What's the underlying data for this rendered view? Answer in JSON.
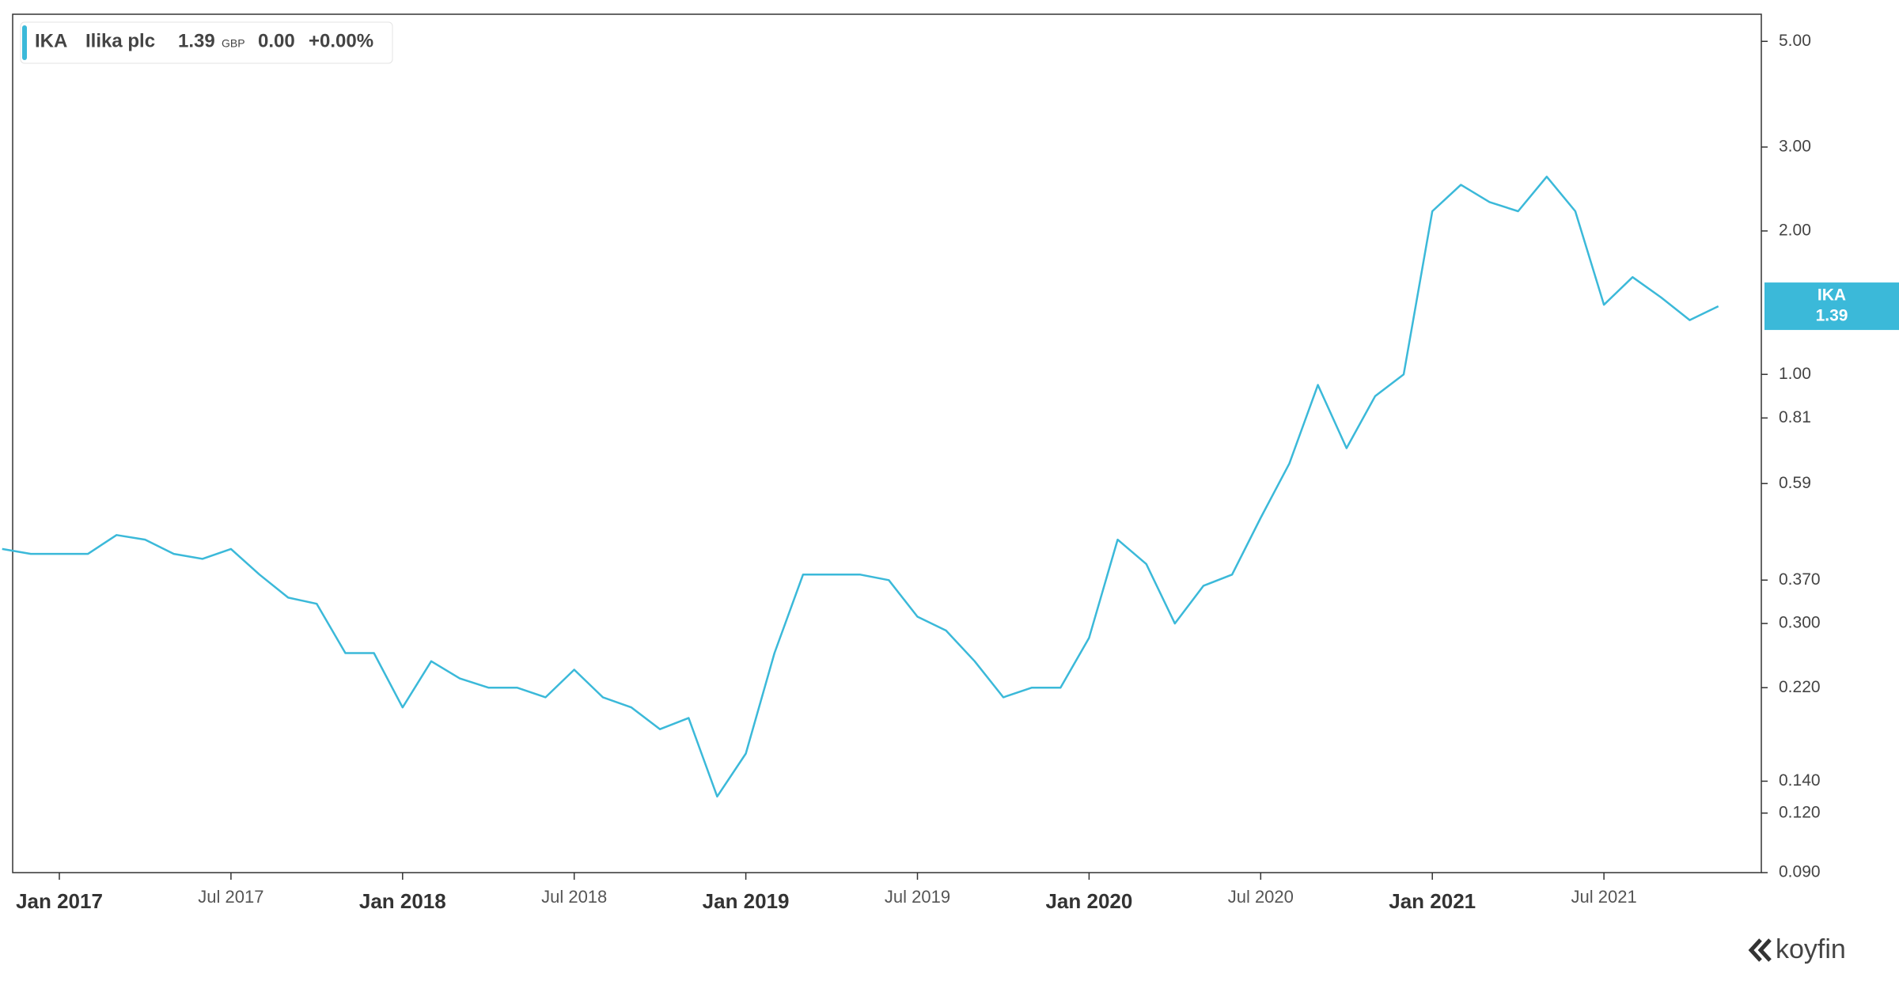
{
  "chart_data": {
    "type": "line",
    "ticker": "IKA",
    "name": "Ilika plc",
    "last": 1.39,
    "currency": "GBP",
    "change": "0.00",
    "change_pct": "+0.00%",
    "brand": "koyfin",
    "log_scale": true,
    "x": [
      "Nov 2016",
      "Dec 2016",
      "Jan 2017",
      "Feb 2017",
      "Mar 2017",
      "Apr 2017",
      "May 2017",
      "Jun 2017",
      "Jul 2017",
      "Aug 2017",
      "Sep 2017",
      "Oct 2017",
      "Nov 2017",
      "Dec 2017",
      "Jan 2018",
      "Feb 2018",
      "Mar 2018",
      "Apr 2018",
      "May 2018",
      "Jun 2018",
      "Jul 2018",
      "Aug 2018",
      "Sep 2018",
      "Oct 2018",
      "Nov 2018",
      "Dec 2018",
      "Jan 2019",
      "Feb 2019",
      "Mar 2019",
      "Apr 2019",
      "May 2019",
      "Jun 2019",
      "Jul 2019",
      "Aug 2019",
      "Sep 2019",
      "Oct 2019",
      "Nov 2019",
      "Dec 2019",
      "Jan 2020",
      "Feb 2020",
      "Mar 2020",
      "Apr 2020",
      "May 2020",
      "Jun 2020",
      "Jul 2020",
      "Aug 2020",
      "Sep 2020",
      "Oct 2020",
      "Nov 2020",
      "Dec 2020",
      "Jan 2021",
      "Feb 2021",
      "Mar 2021",
      "Apr 2021",
      "May 2021",
      "Jun 2021",
      "Jul 2021",
      "Aug 2021",
      "Sep 2021",
      "Oct 2021",
      "Nov 2021"
    ],
    "series": [
      {
        "name": "IKA",
        "color": "#3bb9d9",
        "values": [
          0.43,
          0.42,
          0.42,
          0.42,
          0.46,
          0.45,
          0.42,
          0.41,
          0.43,
          0.38,
          0.34,
          0.33,
          0.26,
          0.26,
          0.2,
          0.25,
          0.23,
          0.22,
          0.22,
          0.21,
          0.24,
          0.21,
          0.2,
          0.18,
          0.19,
          0.13,
          0.16,
          0.26,
          0.38,
          0.38,
          0.38,
          0.37,
          0.31,
          0.29,
          0.25,
          0.21,
          0.22,
          0.22,
          0.28,
          0.45,
          0.4,
          0.3,
          0.36,
          0.38,
          0.5,
          0.65,
          0.95,
          0.7,
          0.9,
          1.0,
          2.2,
          2.5,
          2.3,
          2.2,
          2.6,
          2.2,
          1.4,
          1.6,
          1.45,
          1.3,
          1.39
        ]
      }
    ],
    "xticks": [
      "Jan 2017",
      "Jul 2017",
      "Jan 2018",
      "Jul 2018",
      "Jan 2019",
      "Jul 2019",
      "Jan 2020",
      "Jul 2020",
      "Jan 2021",
      "Jul 2021"
    ],
    "ylim": [
      0.09,
      5.7
    ],
    "yticks": [
      {
        "value": 5,
        "label": "5.00"
      },
      {
        "value": 3,
        "label": "3.00"
      },
      {
        "value": 2,
        "label": "2.00"
      },
      {
        "value": 1,
        "label": "1.00"
      },
      0.81,
      0.59,
      {
        "value": 0.37,
        "label": "0.370"
      },
      {
        "value": 0.3,
        "label": "0.300"
      },
      {
        "value": 0.22,
        "label": "0.220"
      },
      {
        "value": 0.14,
        "label": "0.140"
      },
      {
        "value": 0.12,
        "label": "0.120"
      },
      {
        "value": 0.09,
        "label": "0.090"
      }
    ]
  }
}
